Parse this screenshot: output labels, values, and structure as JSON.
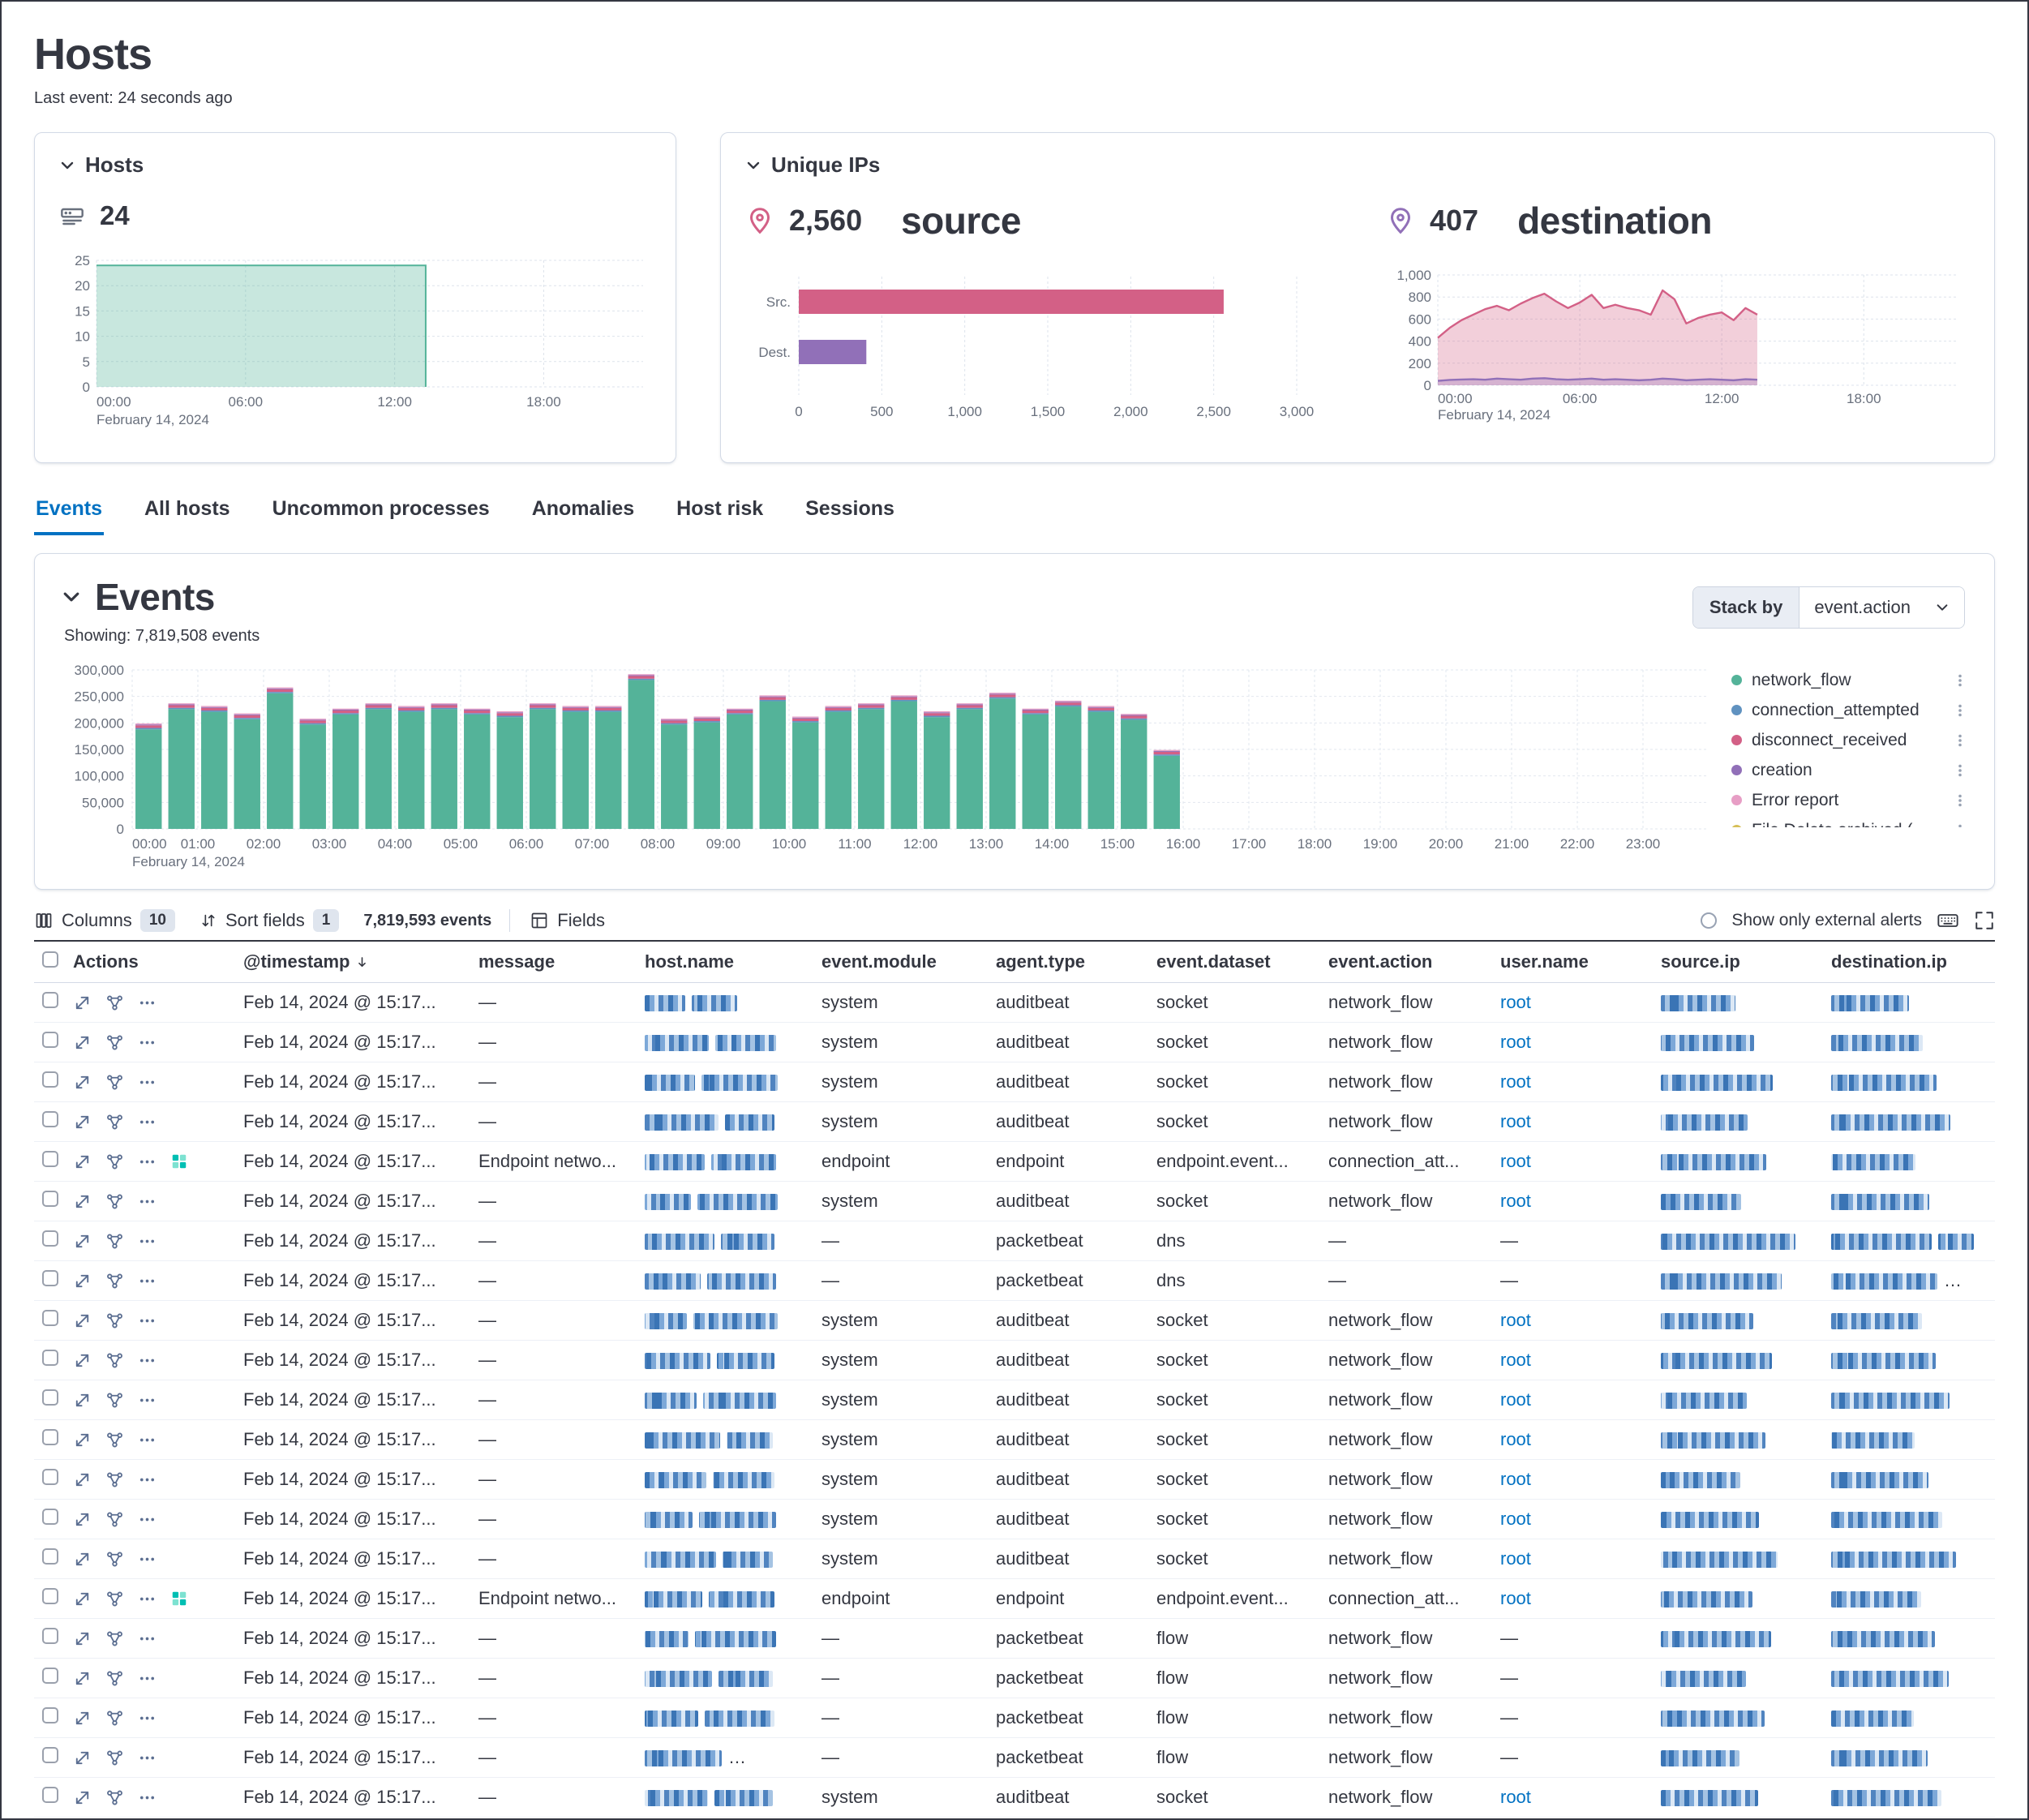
{
  "page": {
    "title": "Hosts",
    "last_event": "Last event: 24 seconds ago"
  },
  "hosts_panel": {
    "title": "Hosts",
    "count": "24"
  },
  "unique_ips_panel": {
    "title": "Unique IPs",
    "source_value": "2,560",
    "source_label": "source",
    "dest_value": "407",
    "dest_label": "destination"
  },
  "tabs": [
    {
      "label": "Events",
      "active": true
    },
    {
      "label": "All hosts",
      "active": false
    },
    {
      "label": "Uncommon processes",
      "active": false
    },
    {
      "label": "Anomalies",
      "active": false
    },
    {
      "label": "Host risk",
      "active": false
    },
    {
      "label": "Sessions",
      "active": false
    }
  ],
  "events_panel": {
    "title": "Events",
    "showing": "Showing: 7,819,508 events",
    "stack_by_label": "Stack by",
    "stack_by_value": "event.action"
  },
  "toolbar": {
    "columns_label": "Columns",
    "columns_count": "10",
    "sort_label": "Sort fields",
    "sort_count": "1",
    "events_count": "7,819,593 events",
    "fields_label": "Fields",
    "external_label": "Show only external alerts"
  },
  "table": {
    "columns": [
      "Actions",
      "@timestamp",
      "message",
      "host.name",
      "event.module",
      "agent.type",
      "event.dataset",
      "event.action",
      "user.name",
      "source.ip",
      "destination.ip"
    ],
    "rows": [
      {
        "timestamp": "Feb 14, 2024 @ 15:17...",
        "message": "—",
        "event_module": "system",
        "agent_type": "auditbeat",
        "event_dataset": "socket",
        "event_action": "network_flow",
        "user_name": "root",
        "endpoint": false
      },
      {
        "timestamp": "Feb 14, 2024 @ 15:17...",
        "message": "—",
        "event_module": "system",
        "agent_type": "auditbeat",
        "event_dataset": "socket",
        "event_action": "network_flow",
        "user_name": "root",
        "endpoint": false
      },
      {
        "timestamp": "Feb 14, 2024 @ 15:17...",
        "message": "—",
        "event_module": "system",
        "agent_type": "auditbeat",
        "event_dataset": "socket",
        "event_action": "network_flow",
        "user_name": "root",
        "endpoint": false
      },
      {
        "timestamp": "Feb 14, 2024 @ 15:17...",
        "message": "—",
        "event_module": "system",
        "agent_type": "auditbeat",
        "event_dataset": "socket",
        "event_action": "network_flow",
        "user_name": "root",
        "endpoint": false
      },
      {
        "timestamp": "Feb 14, 2024 @ 15:17...",
        "message": "Endpoint netwo...",
        "event_module": "endpoint",
        "agent_type": "endpoint",
        "event_dataset": "endpoint.event...",
        "event_action": "connection_att...",
        "user_name": "root",
        "endpoint": true
      },
      {
        "timestamp": "Feb 14, 2024 @ 15:17...",
        "message": "—",
        "event_module": "system",
        "agent_type": "auditbeat",
        "event_dataset": "socket",
        "event_action": "network_flow",
        "user_name": "root",
        "endpoint": false
      },
      {
        "timestamp": "Feb 14, 2024 @ 15:17...",
        "message": "—",
        "event_module": "—",
        "agent_type": "packetbeat",
        "event_dataset": "dns",
        "event_action": "—",
        "user_name": "—",
        "endpoint": false
      },
      {
        "timestamp": "Feb 14, 2024 @ 15:17...",
        "message": "—",
        "event_module": "—",
        "agent_type": "packetbeat",
        "event_dataset": "dns",
        "event_action": "—",
        "user_name": "—",
        "endpoint": false
      },
      {
        "timestamp": "Feb 14, 2024 @ 15:17...",
        "message": "—",
        "event_module": "system",
        "agent_type": "auditbeat",
        "event_dataset": "socket",
        "event_action": "network_flow",
        "user_name": "root",
        "endpoint": false
      },
      {
        "timestamp": "Feb 14, 2024 @ 15:17...",
        "message": "—",
        "event_module": "system",
        "agent_type": "auditbeat",
        "event_dataset": "socket",
        "event_action": "network_flow",
        "user_name": "root",
        "endpoint": false
      },
      {
        "timestamp": "Feb 14, 2024 @ 15:17...",
        "message": "—",
        "event_module": "system",
        "agent_type": "auditbeat",
        "event_dataset": "socket",
        "event_action": "network_flow",
        "user_name": "root",
        "endpoint": false
      },
      {
        "timestamp": "Feb 14, 2024 @ 15:17...",
        "message": "—",
        "event_module": "system",
        "agent_type": "auditbeat",
        "event_dataset": "socket",
        "event_action": "network_flow",
        "user_name": "root",
        "endpoint": false
      },
      {
        "timestamp": "Feb 14, 2024 @ 15:17...",
        "message": "—",
        "event_module": "system",
        "agent_type": "auditbeat",
        "event_dataset": "socket",
        "event_action": "network_flow",
        "user_name": "root",
        "endpoint": false
      },
      {
        "timestamp": "Feb 14, 2024 @ 15:17...",
        "message": "—",
        "event_module": "system",
        "agent_type": "auditbeat",
        "event_dataset": "socket",
        "event_action": "network_flow",
        "user_name": "root",
        "endpoint": false
      },
      {
        "timestamp": "Feb 14, 2024 @ 15:17...",
        "message": "—",
        "event_module": "system",
        "agent_type": "auditbeat",
        "event_dataset": "socket",
        "event_action": "network_flow",
        "user_name": "root",
        "endpoint": false
      },
      {
        "timestamp": "Feb 14, 2024 @ 15:17...",
        "message": "Endpoint netwo...",
        "event_module": "endpoint",
        "agent_type": "endpoint",
        "event_dataset": "endpoint.event...",
        "event_action": "connection_att...",
        "user_name": "root",
        "endpoint": true
      },
      {
        "timestamp": "Feb 14, 2024 @ 15:17...",
        "message": "—",
        "event_module": "—",
        "agent_type": "packetbeat",
        "event_dataset": "flow",
        "event_action": "network_flow",
        "user_name": "—",
        "endpoint": false
      },
      {
        "timestamp": "Feb 14, 2024 @ 15:17...",
        "message": "—",
        "event_module": "—",
        "agent_type": "packetbeat",
        "event_dataset": "flow",
        "event_action": "network_flow",
        "user_name": "—",
        "endpoint": false
      },
      {
        "timestamp": "Feb 14, 2024 @ 15:17...",
        "message": "—",
        "event_module": "—",
        "agent_type": "packetbeat",
        "event_dataset": "flow",
        "event_action": "network_flow",
        "user_name": "—",
        "endpoint": false
      },
      {
        "timestamp": "Feb 14, 2024 @ 15:17...",
        "message": "—",
        "event_module": "—",
        "agent_type": "packetbeat",
        "event_dataset": "flow",
        "event_action": "network_flow",
        "user_name": "—",
        "endpoint": false
      },
      {
        "timestamp": "Feb 14, 2024 @ 15:17...",
        "message": "—",
        "event_module": "system",
        "agent_type": "auditbeat",
        "event_dataset": "socket",
        "event_action": "network_flow",
        "user_name": "root",
        "endpoint": false
      }
    ]
  },
  "chart_data": [
    {
      "id": "hosts_over_time",
      "type": "area",
      "title": "Hosts",
      "ylim": [
        0,
        25
      ],
      "y_ticks": [
        0,
        5,
        10,
        15,
        20,
        25
      ],
      "x_max": 22,
      "series": [
        {
          "name": "hosts",
          "color": "#54b399",
          "x": [
            0,
            13.25
          ],
          "y": [
            24,
            24
          ]
        }
      ],
      "x_ticks": [
        {
          "h": 0,
          "label": "00:00",
          "sublabel": "February 14, 2024"
        },
        {
          "h": 6,
          "label": "06:00"
        },
        {
          "h": 12,
          "label": "12:00"
        },
        {
          "h": 18,
          "label": "18:00"
        }
      ]
    },
    {
      "id": "unique_ips_bar",
      "type": "bar",
      "orientation": "horizontal",
      "categories": [
        "Src.",
        "Dest."
      ],
      "values": [
        2560,
        407
      ],
      "colors": [
        "#d36086",
        "#9170b8"
      ],
      "xlim": [
        0,
        3000
      ],
      "x_ticks": [
        0,
        500,
        1000,
        1500,
        2000,
        2500,
        3000
      ],
      "x_tick_labels": [
        "0",
        "500",
        "1,000",
        "1,500",
        "2,000",
        "2,500",
        "3,000"
      ]
    },
    {
      "id": "unique_ips_over_time",
      "type": "area",
      "ylim": [
        0,
        1000
      ],
      "y_ticks": [
        0,
        200,
        400,
        600,
        800,
        1000
      ],
      "y_tick_labels": [
        "0",
        "200",
        "400",
        "600",
        "800",
        "1,000"
      ],
      "x_max": 22,
      "x_step_hours": 0.5,
      "series": [
        {
          "name": "source",
          "color": "#d36086",
          "values": [
            430,
            520,
            590,
            640,
            690,
            720,
            680,
            740,
            790,
            830,
            760,
            700,
            750,
            820,
            700,
            730,
            700,
            680,
            640,
            860,
            780,
            560,
            610,
            640,
            660,
            590,
            700,
            640
          ]
        },
        {
          "name": "destination",
          "color": "#9170b8",
          "values": [
            40,
            48,
            52,
            55,
            50,
            60,
            55,
            50,
            60,
            64,
            55,
            50,
            55,
            60,
            50,
            55,
            50,
            45,
            50,
            60,
            55,
            45,
            50,
            55,
            50,
            45,
            55,
            50
          ]
        }
      ],
      "x_ticks": [
        {
          "h": 0,
          "label": "00:00",
          "sublabel": "February 14, 2024"
        },
        {
          "h": 6,
          "label": "06:00"
        },
        {
          "h": 12,
          "label": "12:00"
        },
        {
          "h": 18,
          "label": "18:00"
        }
      ]
    },
    {
      "id": "events_histogram",
      "type": "bar",
      "stacked": true,
      "title": "Events",
      "ylim": [
        0,
        300000
      ],
      "y_ticks": [
        0,
        50000,
        100000,
        150000,
        200000,
        250000,
        300000
      ],
      "y_tick_labels": [
        "0",
        "50,000",
        "100,000",
        "150,000",
        "200,000",
        "250,000",
        "300,000"
      ],
      "bucket_hours": 0.5,
      "x_max": 24,
      "date_sublabel": "February 14, 2024",
      "x_tick_labels": [
        "00:00",
        "01:00",
        "02:00",
        "03:00",
        "04:00",
        "05:00",
        "06:00",
        "07:00",
        "08:00",
        "09:00",
        "10:00",
        "11:00",
        "12:00",
        "13:00",
        "14:00",
        "15:00",
        "16:00",
        "17:00",
        "18:00",
        "19:00",
        "20:00",
        "21:00",
        "22:00",
        "23:00"
      ],
      "series": [
        {
          "name": "network_flow",
          "color": "#54b399",
          "values": [
            188000,
            226000,
            221000,
            207000,
            256000,
            197000,
            216000,
            226000,
            221000,
            226000,
            216000,
            211000,
            226000,
            221000,
            221000,
            281000,
            197000,
            201000,
            216000,
            241000,
            201000,
            221000,
            226000,
            241000,
            211000,
            226000,
            246000,
            216000,
            231000,
            221000,
            206000,
            138000
          ]
        },
        {
          "name": "connection_attempted",
          "color": "#6092c0",
          "values": [
            2500,
            2500,
            2500,
            2500,
            2500,
            2500,
            2500,
            2500,
            2500,
            2500,
            2500,
            2500,
            2500,
            2500,
            2500,
            2500,
            2500,
            2500,
            2500,
            2500,
            2500,
            2500,
            2500,
            2500,
            2500,
            2500,
            2500,
            2500,
            2500,
            2500,
            2500,
            2500
          ]
        },
        {
          "name": "disconnect_received",
          "color": "#d36086",
          "values": [
            5000,
            5000,
            5000,
            5000,
            5000,
            5000,
            5000,
            5000,
            5000,
            5000,
            5000,
            5000,
            5000,
            5000,
            5000,
            5000,
            5000,
            5000,
            5000,
            5000,
            5000,
            5000,
            5000,
            5000,
            5000,
            5000,
            5000,
            5000,
            5000,
            5000,
            5000,
            5000
          ]
        },
        {
          "name": "creation",
          "color": "#9170b8",
          "values": [
            1500,
            1500,
            1500,
            1500,
            1500,
            1500,
            1500,
            1500,
            1500,
            1500,
            1500,
            1500,
            1500,
            1500,
            1500,
            1500,
            1500,
            1500,
            1500,
            1500,
            1500,
            1500,
            1500,
            1500,
            1500,
            1500,
            1500,
            1500,
            1500,
            1500,
            1500,
            1500
          ]
        },
        {
          "name": "Error report",
          "color": "#e79ec5",
          "values": [
            2000,
            2000,
            2000,
            2000,
            2000,
            2000,
            2000,
            2000,
            2000,
            2000,
            2000,
            2000,
            2000,
            2000,
            2000,
            2000,
            2000,
            2000,
            2000,
            2000,
            2000,
            2000,
            2000,
            2000,
            2000,
            2000,
            2000,
            2000,
            2000,
            2000,
            2000,
            2000
          ]
        }
      ],
      "legend_position": "right",
      "legend": [
        {
          "label": "network_flow",
          "color": "#54b399"
        },
        {
          "label": "connection_attempted",
          "color": "#6092c0"
        },
        {
          "label": "disconnect_received",
          "color": "#d36086"
        },
        {
          "label": "creation",
          "color": "#9170b8"
        },
        {
          "label": "Error report",
          "color": "#e79ec5"
        },
        {
          "label": "File Delete archived (",
          "color": "#d6bf57"
        }
      ]
    }
  ]
}
